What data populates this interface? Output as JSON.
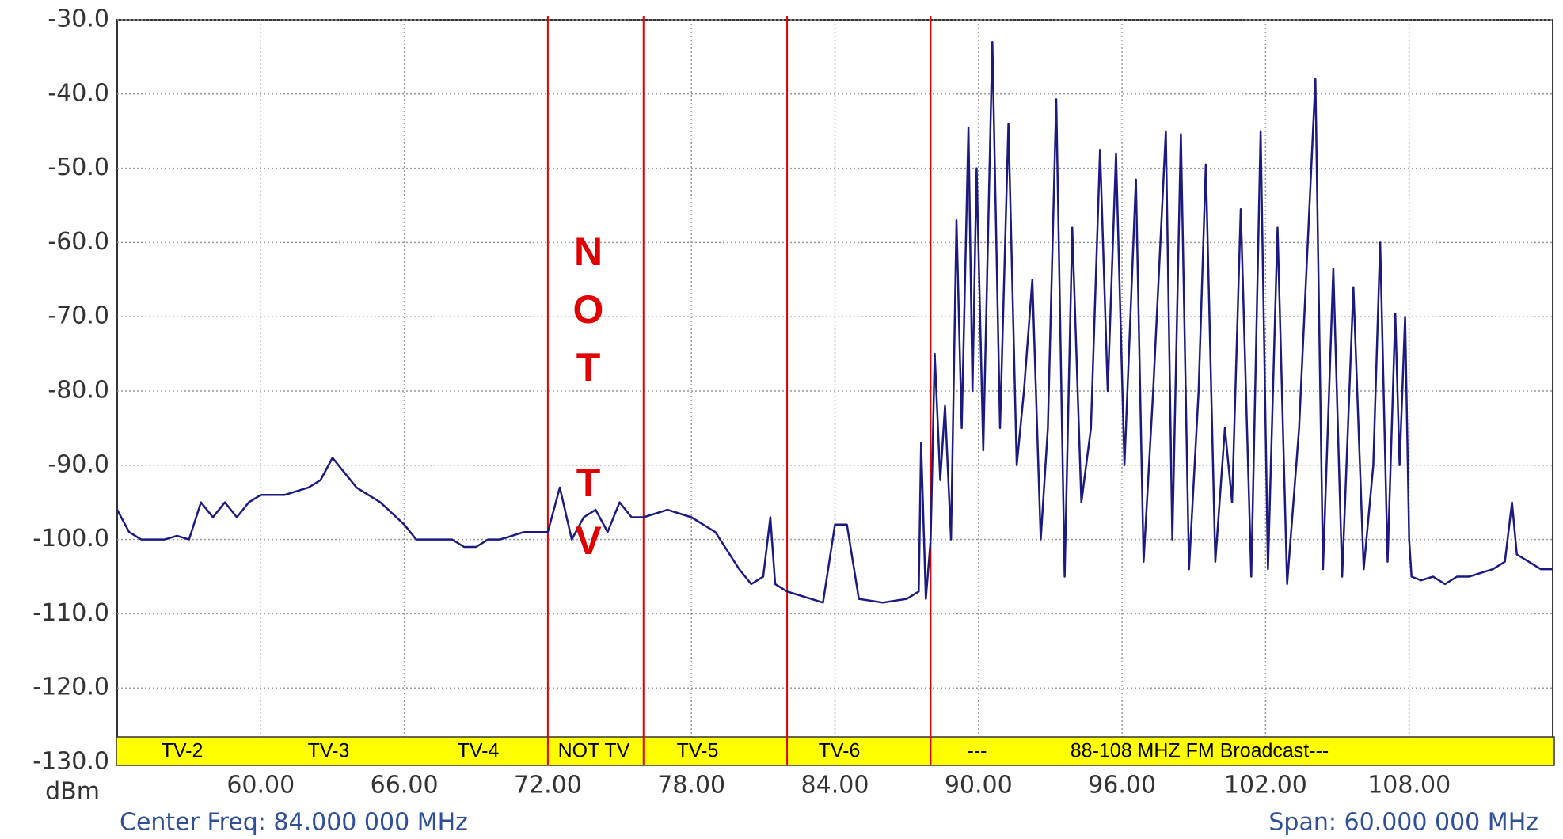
{
  "chart_data": {
    "type": "line",
    "x_unit_label": "dBm",
    "center_label": "Center Freq: 84.000 000 MHz",
    "span_label": "Span: 60.000 000 MHz",
    "xlim": [
      54,
      114
    ],
    "ylim": [
      -130,
      -30
    ],
    "xticks": [
      {
        "value": 60,
        "label": "60.00"
      },
      {
        "value": 66,
        "label": "66.00"
      },
      {
        "value": 72,
        "label": "72.00"
      },
      {
        "value": 78,
        "label": "78.00"
      },
      {
        "value": 84,
        "label": "84.00"
      },
      {
        "value": 90,
        "label": "90.00"
      },
      {
        "value": 96,
        "label": "96.00"
      },
      {
        "value": 102,
        "label": "102.00"
      },
      {
        "value": 108,
        "label": "108.00"
      }
    ],
    "yticks": [
      {
        "value": -30,
        "label": "-30.0"
      },
      {
        "value": -40,
        "label": "-40.0"
      },
      {
        "value": -50,
        "label": "-50.0"
      },
      {
        "value": -60,
        "label": "-60.0"
      },
      {
        "value": -70,
        "label": "-70.0"
      },
      {
        "value": -80,
        "label": "-80.0"
      },
      {
        "value": -90,
        "label": "-90.0"
      },
      {
        "value": -100,
        "label": "-100.0"
      },
      {
        "value": -110,
        "label": "-110.0"
      },
      {
        "value": -120,
        "label": "-120.0"
      },
      {
        "value": -130,
        "label": "-130.0"
      }
    ],
    "grid": true,
    "band_edges": [
      72,
      76,
      82,
      88
    ],
    "band_edge_color": "#e00000",
    "band_labels": [
      "TV-2",
      "TV-3",
      "TV-4",
      "NOT TV",
      "TV-5",
      "TV-6",
      "---",
      "88-108 MHZ FM Broadcast---"
    ],
    "band_color": "#ffff00",
    "vertical_annotation": "NOT TV",
    "x": [
      54,
      54.5,
      55,
      55.5,
      56,
      56.5,
      57,
      57.5,
      58,
      58.5,
      59,
      59.5,
      60,
      61,
      62,
      62.5,
      63,
      63.5,
      64,
      65,
      66,
      66.5,
      67,
      68,
      68.5,
      69,
      69.5,
      70,
      71,
      72,
      72.5,
      73,
      73.5,
      74,
      74.5,
      75,
      75.5,
      76,
      77,
      78,
      79,
      80,
      80.5,
      81,
      81.3,
      81.5,
      82,
      83,
      83.5,
      84,
      84.5,
      85,
      86,
      87,
      87.5,
      87.6,
      87.8,
      88,
      88.17,
      88.4,
      88.6,
      88.85,
      89.08,
      89.3,
      89.58,
      89.75,
      89.92,
      90.2,
      90.58,
      90.9,
      91.25,
      91.6,
      91.9,
      92.25,
      92.6,
      92.9,
      93.25,
      93.6,
      93.92,
      94.3,
      94.7,
      95.08,
      95.4,
      95.75,
      96.1,
      96.58,
      96.9,
      97.3,
      97.83,
      98.1,
      98.46,
      98.8,
      99.2,
      99.5,
      99.9,
      100.3,
      100.6,
      100.96,
      101.4,
      101.79,
      102.1,
      102.5,
      102.9,
      103.4,
      104.08,
      104.4,
      104.83,
      105.2,
      105.67,
      106.1,
      106.5,
      106.79,
      107.1,
      107.42,
      107.6,
      107.83,
      108,
      108.1,
      108.5,
      109,
      109.5,
      110,
      110.5,
      111,
      111.5,
      112,
      112.3,
      112.5,
      113,
      113.5,
      114
    ],
    "series": [
      {
        "color": "#1a1a80",
        "values": [
          -96,
          -99,
          -100,
          -100,
          -100,
          -99.5,
          -100,
          -95,
          -97,
          -95,
          -97,
          -95,
          -94,
          -94,
          -93,
          -92,
          -89,
          -91,
          -93,
          -95,
          -98,
          -100,
          -100,
          -100,
          -101,
          -101,
          -100,
          -100,
          -99,
          -99,
          -93,
          -100,
          -97,
          -96,
          -99,
          -95,
          -97,
          -97,
          -96,
          -97,
          -99,
          -104,
          -106,
          -105,
          -97,
          -106,
          -107,
          -108,
          -108.5,
          -98,
          -98,
          -108,
          -108.5,
          -108,
          -107,
          -87,
          -108,
          -100,
          -75,
          -92,
          -82,
          -100,
          -57,
          -85,
          -44.5,
          -80,
          -50,
          -88,
          -33,
          -85,
          -44,
          -90,
          -80,
          -65,
          -100,
          -85,
          -40.7,
          -105,
          -58,
          -95,
          -85,
          -47.5,
          -80,
          -48,
          -90,
          -51.5,
          -103,
          -80,
          -45,
          -100,
          -45.4,
          -104,
          -80,
          -49.5,
          -103,
          -85,
          -95,
          -55.5,
          -105,
          -45,
          -104,
          -58,
          -106,
          -85,
          -38,
          -104,
          -63.5,
          -105,
          -66,
          -104,
          -90,
          -60,
          -103,
          -69.6,
          -90,
          -70,
          -100,
          -105,
          -105.5,
          -105,
          -106,
          -105,
          -105,
          -104.5,
          -104,
          -103,
          -95,
          -102,
          -103,
          -104,
          -104
        ]
      }
    ]
  }
}
